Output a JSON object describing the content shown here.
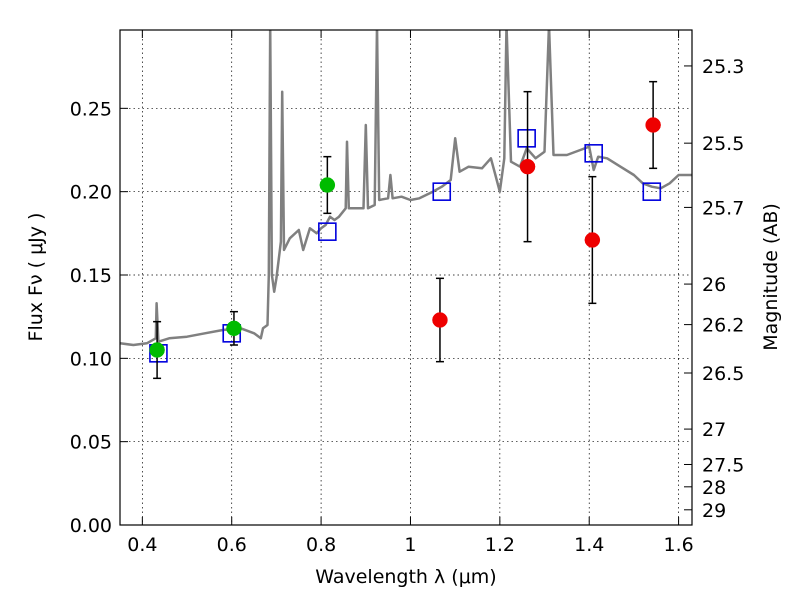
{
  "chart_data": {
    "type": "scatter",
    "xlabel": "Wavelength  λ (μm)",
    "ylabel": "Flux  Fν  ( μJy )",
    "y2label": "Magnitude (AB)",
    "xlim": [
      0.35,
      1.63
    ],
    "ylim": [
      0.0,
      0.297
    ],
    "grid": true,
    "x_ticks": [
      {
        "value": 0.4,
        "label": "0.4"
      },
      {
        "value": 0.6,
        "label": "0.6"
      },
      {
        "value": 0.8,
        "label": "0.8"
      },
      {
        "value": 1.0,
        "label": "1"
      },
      {
        "value": 1.2,
        "label": "1.2"
      },
      {
        "value": 1.4,
        "label": "1.4"
      },
      {
        "value": 1.6,
        "label": "1.6"
      }
    ],
    "y_ticks": [
      {
        "value": 0.0,
        "label": "0.00"
      },
      {
        "value": 0.05,
        "label": "0.05"
      },
      {
        "value": 0.1,
        "label": "0.10"
      },
      {
        "value": 0.15,
        "label": "0.15"
      },
      {
        "value": 0.2,
        "label": "0.20"
      },
      {
        "value": 0.25,
        "label": "0.25"
      }
    ],
    "y2_ticks": [
      {
        "value": 25.3,
        "label": "25.3"
      },
      {
        "value": 25.5,
        "label": "25.5"
      },
      {
        "value": 25.7,
        "label": "25.7"
      },
      {
        "value": 26,
        "label": "26"
      },
      {
        "value": 26.2,
        "label": "26.2"
      },
      {
        "value": 26.5,
        "label": "26.5"
      },
      {
        "value": 27,
        "label": "27"
      },
      {
        "value": 27.5,
        "label": "27.5"
      },
      {
        "value": 28,
        "label": "28"
      },
      {
        "value": 29,
        "label": "29"
      }
    ],
    "colors": {
      "spectrum": "#808080",
      "green_points": "#00bb00",
      "red_points": "#ee0000",
      "model_squares": "#0000dd",
      "error_bars": "#000000"
    },
    "series": [
      {
        "type": "line",
        "points": [
          [
            0.35,
            0.109
          ],
          [
            0.38,
            0.108
          ],
          [
            0.41,
            0.109
          ],
          [
            0.43,
            0.112
          ],
          [
            0.432,
            0.133
          ],
          [
            0.436,
            0.11
          ],
          [
            0.46,
            0.112
          ],
          [
            0.5,
            0.113
          ],
          [
            0.54,
            0.115
          ],
          [
            0.58,
            0.117
          ],
          [
            0.62,
            0.118
          ],
          [
            0.65,
            0.115
          ],
          [
            0.665,
            0.112
          ],
          [
            0.67,
            0.118
          ],
          [
            0.68,
            0.12
          ],
          [
            0.683,
            0.15
          ],
          [
            0.686,
            0.3
          ],
          [
            0.69,
            0.15
          ],
          [
            0.695,
            0.14
          ],
          [
            0.7,
            0.148
          ],
          [
            0.71,
            0.17
          ],
          [
            0.713,
            0.26
          ],
          [
            0.717,
            0.165
          ],
          [
            0.73,
            0.172
          ],
          [
            0.75,
            0.177
          ],
          [
            0.76,
            0.165
          ],
          [
            0.775,
            0.178
          ],
          [
            0.79,
            0.175
          ],
          [
            0.8,
            0.178
          ],
          [
            0.81,
            0.18
          ],
          [
            0.82,
            0.185
          ],
          [
            0.83,
            0.183
          ],
          [
            0.84,
            0.185
          ],
          [
            0.855,
            0.19
          ],
          [
            0.858,
            0.23
          ],
          [
            0.862,
            0.19
          ],
          [
            0.88,
            0.19
          ],
          [
            0.895,
            0.19
          ],
          [
            0.9,
            0.24
          ],
          [
            0.905,
            0.19
          ],
          [
            0.92,
            0.192
          ],
          [
            0.925,
            0.3
          ],
          [
            0.93,
            0.195
          ],
          [
            0.95,
            0.196
          ],
          [
            0.955,
            0.21
          ],
          [
            0.96,
            0.196
          ],
          [
            0.98,
            0.197
          ],
          [
            1.0,
            0.195
          ],
          [
            1.02,
            0.196
          ],
          [
            1.05,
            0.2
          ],
          [
            1.07,
            0.203
          ],
          [
            1.09,
            0.207
          ],
          [
            1.1,
            0.232
          ],
          [
            1.11,
            0.212
          ],
          [
            1.13,
            0.215
          ],
          [
            1.16,
            0.214
          ],
          [
            1.18,
            0.22
          ],
          [
            1.19,
            0.21
          ],
          [
            1.2,
            0.2
          ],
          [
            1.21,
            0.22
          ],
          [
            1.215,
            0.3
          ],
          [
            1.225,
            0.218
          ],
          [
            1.245,
            0.215
          ],
          [
            1.26,
            0.226
          ],
          [
            1.28,
            0.22
          ],
          [
            1.3,
            0.224
          ],
          [
            1.31,
            0.3
          ],
          [
            1.32,
            0.222
          ],
          [
            1.35,
            0.222
          ],
          [
            1.38,
            0.225
          ],
          [
            1.4,
            0.227
          ],
          [
            1.41,
            0.213
          ],
          [
            1.42,
            0.221
          ],
          [
            1.44,
            0.22
          ],
          [
            1.47,
            0.215
          ],
          [
            1.5,
            0.21
          ],
          [
            1.52,
            0.205
          ],
          [
            1.54,
            0.203
          ],
          [
            1.56,
            0.202
          ],
          [
            1.58,
            0.205
          ],
          [
            1.6,
            0.21
          ],
          [
            1.63,
            0.21
          ]
        ]
      },
      {
        "type": "scatter",
        "marker": "circle",
        "points": [
          {
            "x": 0.433,
            "y": 0.105,
            "err": 0.017
          },
          {
            "x": 0.605,
            "y": 0.118,
            "err": 0.01
          },
          {
            "x": 0.814,
            "y": 0.204,
            "err": 0.017
          }
        ]
      },
      {
        "type": "scatter",
        "marker": "circle",
        "points": [
          {
            "x": 1.066,
            "y": 0.123,
            "err": 0.025
          },
          {
            "x": 1.262,
            "y": 0.215,
            "err": 0.045
          },
          {
            "x": 1.407,
            "y": 0.171,
            "err": 0.038
          },
          {
            "x": 1.543,
            "y": 0.24,
            "err": 0.026
          }
        ]
      },
      {
        "type": "scatter",
        "marker": "open-square",
        "points": [
          {
            "x": 0.436,
            "y": 0.103
          },
          {
            "x": 0.6,
            "y": 0.115
          },
          {
            "x": 0.814,
            "y": 0.176
          },
          {
            "x": 1.07,
            "y": 0.2
          },
          {
            "x": 1.26,
            "y": 0.232
          },
          {
            "x": 1.41,
            "y": 0.223
          },
          {
            "x": 1.54,
            "y": 0.2
          }
        ]
      }
    ]
  }
}
